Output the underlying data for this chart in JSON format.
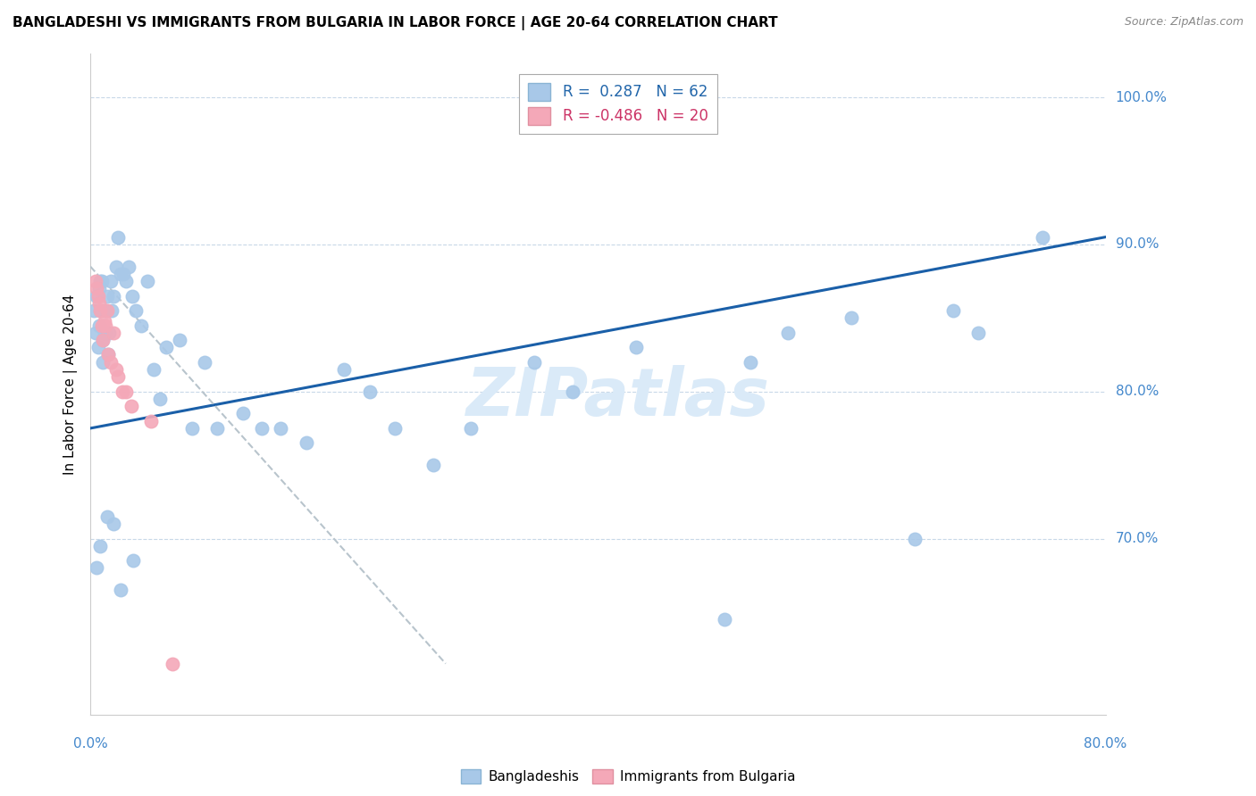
{
  "title": "BANGLADESHI VS IMMIGRANTS FROM BULGARIA IN LABOR FORCE | AGE 20-64 CORRELATION CHART",
  "source": "Source: ZipAtlas.com",
  "ylabel": "In Labor Force | Age 20-64",
  "xlim": [
    0.0,
    0.8
  ],
  "ylim": [
    0.58,
    1.03
  ],
  "blue_color": "#a8c8e8",
  "pink_color": "#f4a8b8",
  "trend_blue": "#1a5fa8",
  "trend_pink_color": "#b8c4cc",
  "grid_color": "#c8d8e8",
  "right_label_color": "#4488cc",
  "bangladeshi_x": [
    0.003,
    0.004,
    0.005,
    0.006,
    0.007,
    0.007,
    0.008,
    0.008,
    0.009,
    0.01,
    0.01,
    0.011,
    0.012,
    0.013,
    0.014,
    0.015,
    0.016,
    0.017,
    0.018,
    0.02,
    0.022,
    0.024,
    0.026,
    0.028,
    0.03,
    0.033,
    0.036,
    0.04,
    0.045,
    0.05,
    0.055,
    0.06,
    0.07,
    0.08,
    0.09,
    0.1,
    0.12,
    0.135,
    0.15,
    0.17,
    0.2,
    0.22,
    0.24,
    0.27,
    0.3,
    0.35,
    0.38,
    0.43,
    0.5,
    0.52,
    0.55,
    0.6,
    0.65,
    0.7,
    0.75,
    0.018,
    0.008,
    0.013,
    0.024,
    0.034,
    0.68,
    0.005
  ],
  "bangladeshi_y": [
    0.855,
    0.84,
    0.865,
    0.83,
    0.845,
    0.87,
    0.875,
    0.855,
    0.875,
    0.835,
    0.82,
    0.84,
    0.855,
    0.865,
    0.825,
    0.84,
    0.875,
    0.855,
    0.865,
    0.885,
    0.905,
    0.88,
    0.88,
    0.875,
    0.885,
    0.865,
    0.855,
    0.845,
    0.875,
    0.815,
    0.795,
    0.83,
    0.835,
    0.775,
    0.82,
    0.775,
    0.785,
    0.775,
    0.775,
    0.765,
    0.815,
    0.8,
    0.775,
    0.75,
    0.775,
    0.82,
    0.8,
    0.83,
    0.645,
    0.82,
    0.84,
    0.85,
    0.7,
    0.84,
    0.905,
    0.71,
    0.695,
    0.715,
    0.665,
    0.685,
    0.855,
    0.68
  ],
  "bulgaria_x": [
    0.004,
    0.005,
    0.006,
    0.007,
    0.008,
    0.009,
    0.01,
    0.011,
    0.012,
    0.013,
    0.014,
    0.016,
    0.018,
    0.02,
    0.022,
    0.025,
    0.028,
    0.032,
    0.048,
    0.065
  ],
  "bulgaria_y": [
    0.875,
    0.87,
    0.865,
    0.86,
    0.855,
    0.845,
    0.835,
    0.848,
    0.845,
    0.855,
    0.825,
    0.82,
    0.84,
    0.815,
    0.81,
    0.8,
    0.8,
    0.79,
    0.78,
    0.615
  ],
  "blue_trend_x": [
    0.0,
    0.8
  ],
  "blue_trend_y": [
    0.775,
    0.905
  ],
  "pink_trend_x": [
    0.0,
    0.28
  ],
  "pink_trend_y": [
    0.885,
    0.615
  ]
}
